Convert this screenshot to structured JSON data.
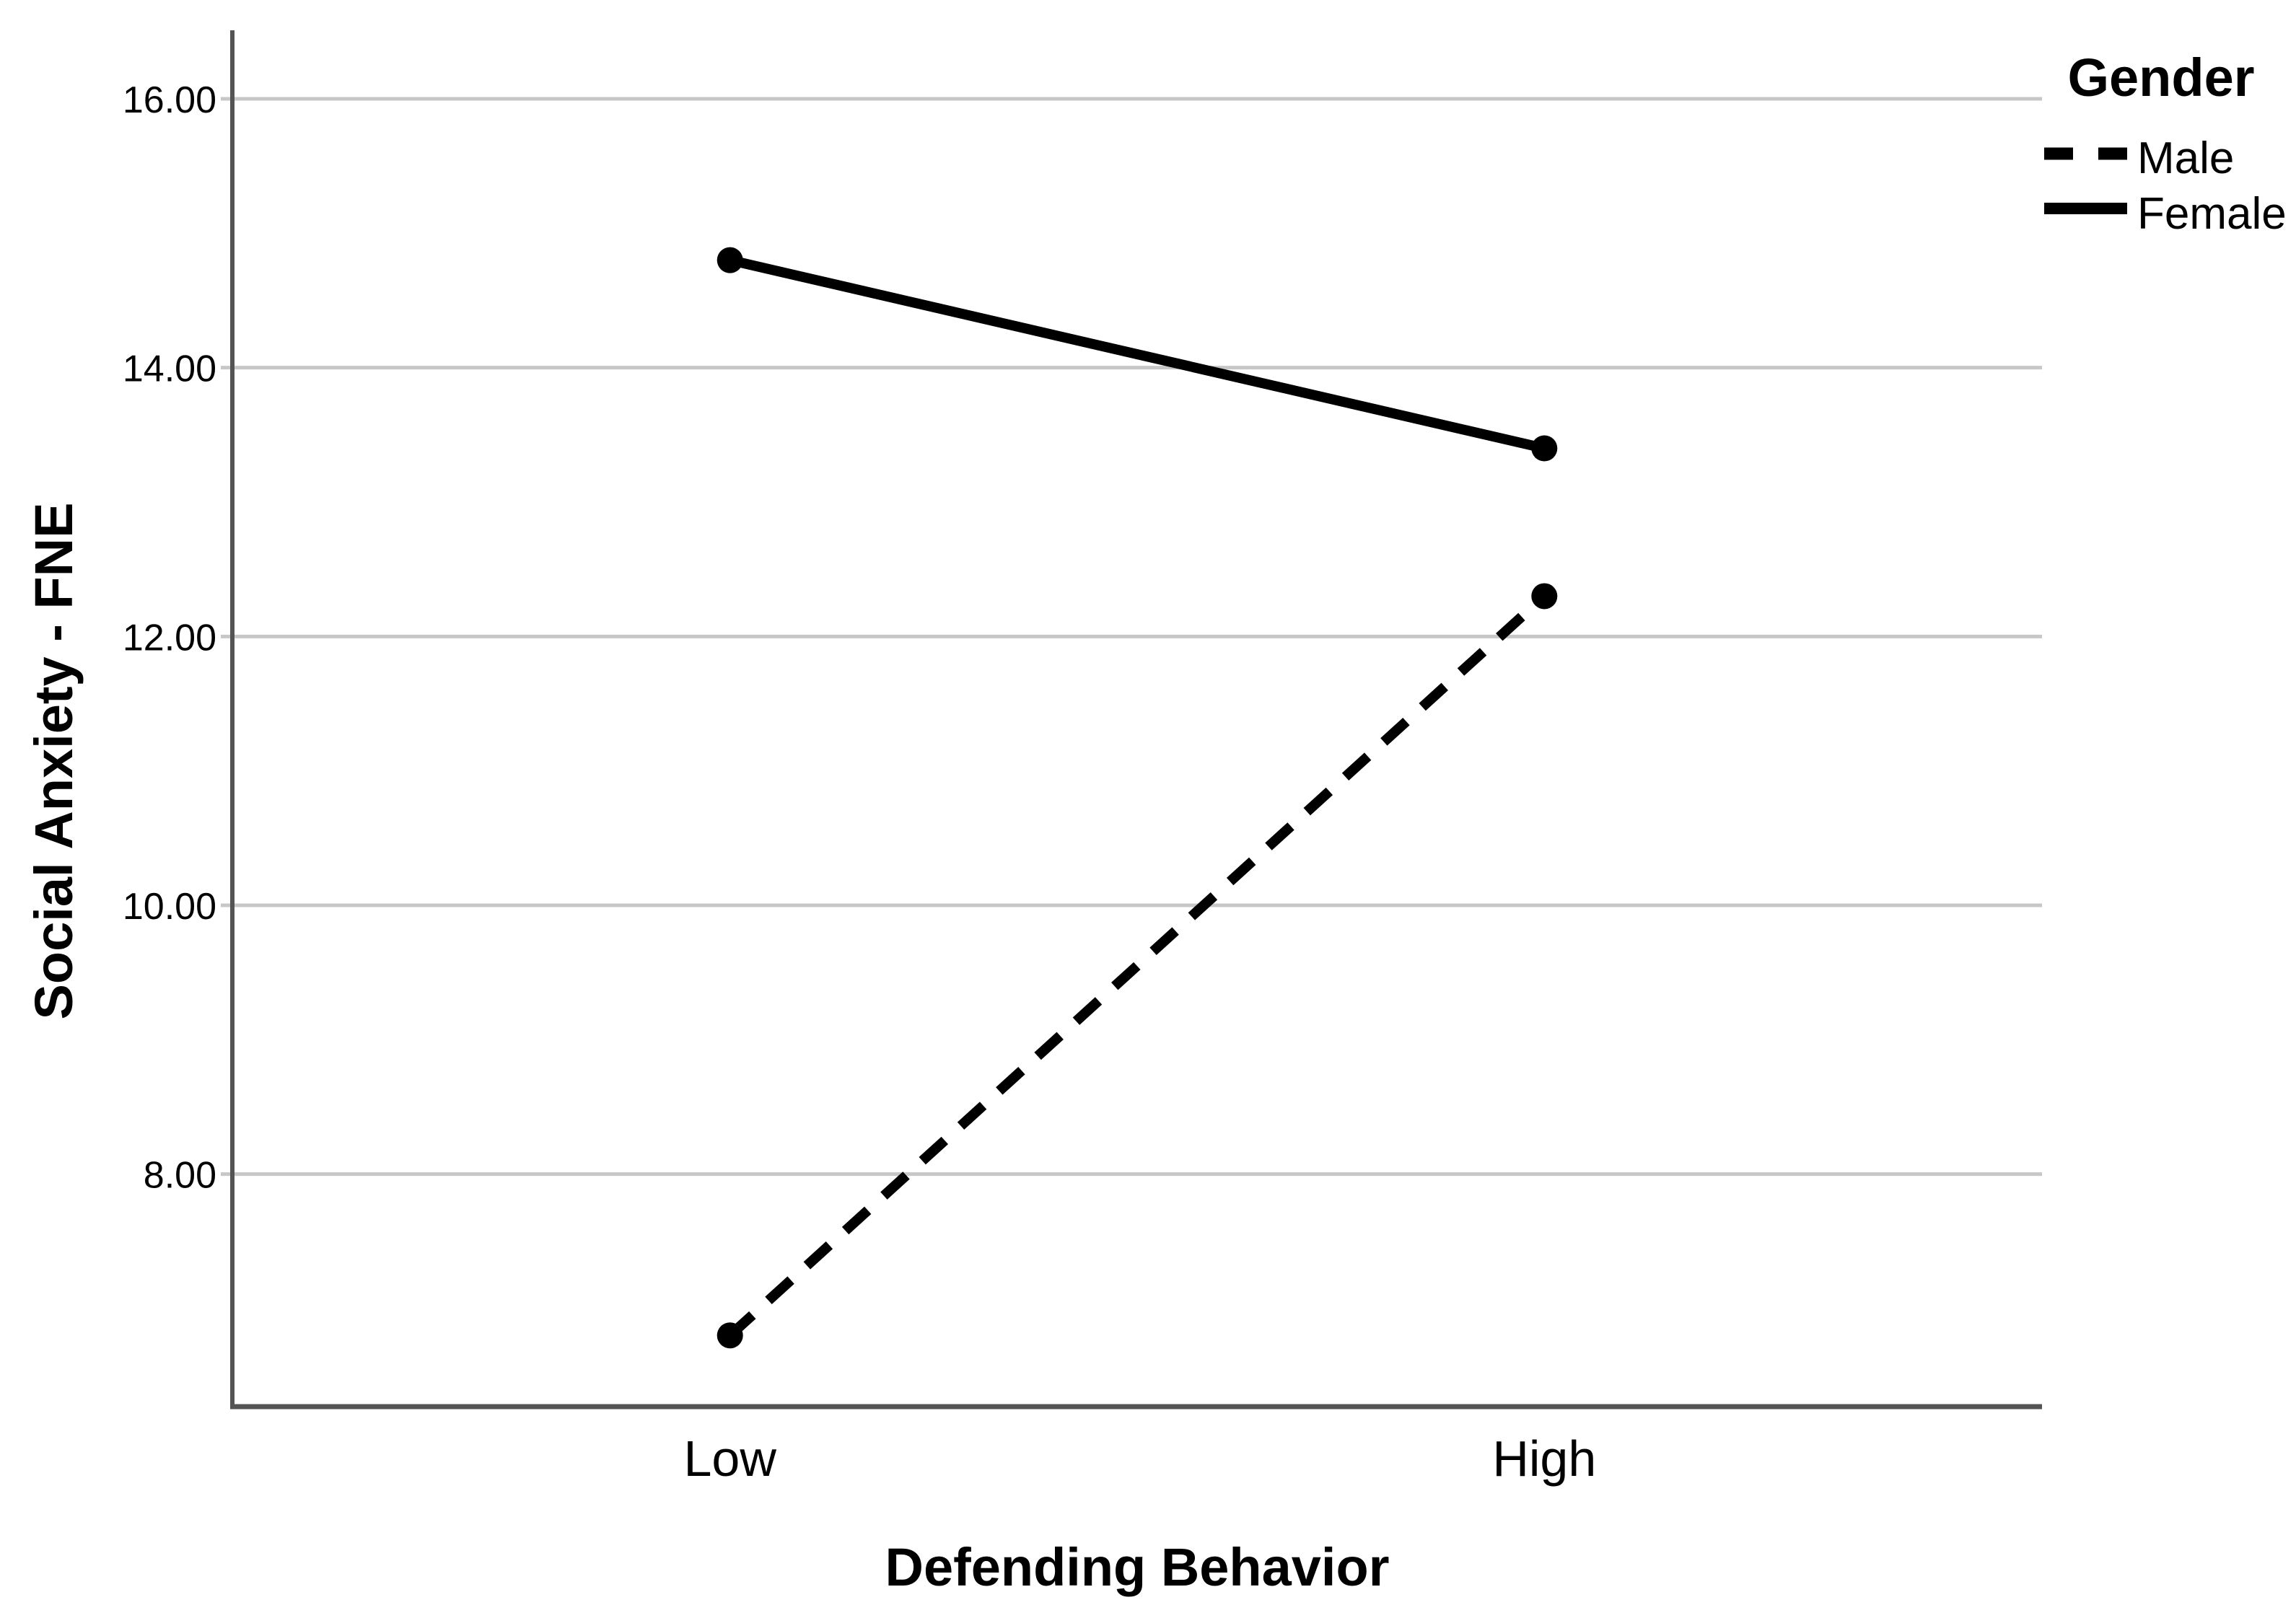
{
  "chart_data": {
    "type": "line",
    "title": "",
    "categories": [
      "Low",
      "High"
    ],
    "series": [
      {
        "name": "Male",
        "line_style": "dashed",
        "values": [
          6.8,
          12.3
        ]
      },
      {
        "name": "Female",
        "line_style": "solid",
        "values": [
          14.8,
          13.4
        ]
      }
    ],
    "xlabel": "Defending Behavior",
    "ylabel": "Social Anxiety - FNE",
    "yticks": [
      8,
      10,
      12,
      14,
      16
    ],
    "ytick_labels": [
      "8.00",
      "10.00",
      "12.00",
      "14.00",
      "16.00"
    ],
    "ylim": [
      6.27,
      16.51
    ],
    "grid": "horizontal",
    "legend": {
      "title": "Gender",
      "position": "top-right-outside"
    },
    "colors": {
      "line": "#000000",
      "gridline": "#c7c7c7",
      "axis": "#545454",
      "text": "#000000",
      "background": "#ffffff"
    }
  }
}
